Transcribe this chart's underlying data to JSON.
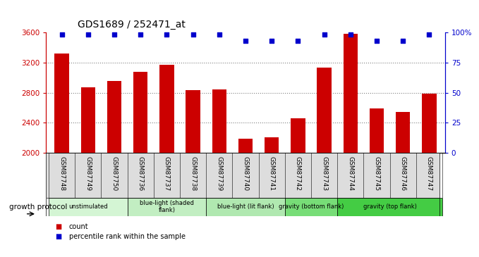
{
  "title": "GDS1689 / 252471_at",
  "samples": [
    "GSM87748",
    "GSM87749",
    "GSM87750",
    "GSM87736",
    "GSM87737",
    "GSM87738",
    "GSM87739",
    "GSM87740",
    "GSM87741",
    "GSM87742",
    "GSM87743",
    "GSM87744",
    "GSM87745",
    "GSM87746",
    "GSM87747"
  ],
  "counts": [
    3320,
    2870,
    2960,
    3080,
    3170,
    2830,
    2840,
    2190,
    2210,
    2460,
    3130,
    3580,
    2590,
    2540,
    2790
  ],
  "percentiles": [
    100,
    100,
    100,
    100,
    100,
    100,
    100,
    87,
    87,
    87,
    100,
    100,
    87,
    87,
    100
  ],
  "bar_color": "#cc0000",
  "dot_color": "#0000cc",
  "ylim_left": [
    2000,
    3600
  ],
  "ylim_right": [
    0,
    100
  ],
  "yticks_left": [
    2000,
    2400,
    2800,
    3200,
    3600
  ],
  "yticks_right": [
    0,
    25,
    50,
    75,
    100
  ],
  "ytick_labels_right": [
    "0",
    "25",
    "50",
    "75",
    "100%"
  ],
  "groups": [
    {
      "label": "unstimulated",
      "start": 0,
      "end": 3,
      "color": "#d4f5d4"
    },
    {
      "label": "blue-light (shaded\nflank)",
      "start": 3,
      "end": 6,
      "color": "#c2eec2"
    },
    {
      "label": "blue-light (lit flank)",
      "start": 6,
      "end": 9,
      "color": "#b0e8b0"
    },
    {
      "label": "gravity (bottom flank)",
      "start": 9,
      "end": 11,
      "color": "#77dd77"
    },
    {
      "label": "gravity (top flank)",
      "start": 11,
      "end": 15,
      "color": "#44cc44"
    }
  ],
  "growth_protocol_label": "growth protocol",
  "legend_count_label": "count",
  "legend_percentile_label": "percentile rank within the sample",
  "bar_color_tick": "#cc0000",
  "dot_color_tick": "#0000cc"
}
